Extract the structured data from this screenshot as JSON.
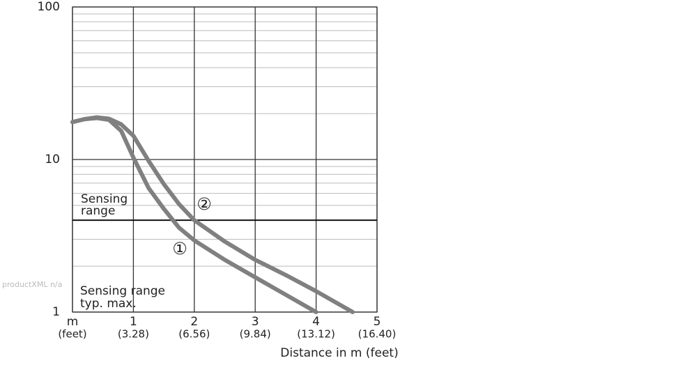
{
  "chart_data": {
    "type": "line",
    "log_y": true,
    "xlabel": "Distance in m (feet)",
    "ylabel_lines": [
      "Sensing range",
      "typ. max."
    ],
    "watermark": "productXML n/a",
    "xlim": [
      0,
      5
    ],
    "ylim": [
      1,
      100
    ],
    "xticks": [
      {
        "value": 0,
        "label": "m"
      },
      1,
      2,
      3,
      4,
      5
    ],
    "xtick_sublabels": [
      "(feet)",
      "(3.28)",
      "(6.56)",
      "(9.84)",
      "(13.12)",
      "(16.40)"
    ],
    "yticks": [
      1,
      10,
      100
    ],
    "minor_yticks": [
      2,
      3,
      4,
      5,
      6,
      7,
      8,
      9,
      20,
      30,
      40,
      50,
      60,
      70,
      80,
      90
    ],
    "grid": true,
    "threshold": {
      "value": 4,
      "label_lines": [
        "Sensing",
        "range"
      ]
    },
    "series": [
      {
        "name": "①",
        "color": "#808080",
        "x": [
          0,
          0.2,
          0.4,
          0.6,
          0.8,
          1,
          1.25,
          1.5,
          1.75,
          2,
          2.5,
          3,
          3.5,
          4
        ],
        "values": [
          17.6,
          18.4,
          18.7,
          18.2,
          15.4,
          10.3,
          6.5,
          4.75,
          3.57,
          2.95,
          2.2,
          1.69,
          1.3,
          1.0
        ]
      },
      {
        "name": "②",
        "color": "#808080",
        "x": [
          0,
          0.2,
          0.4,
          0.6,
          0.8,
          1,
          1.25,
          1.5,
          1.75,
          2,
          2.5,
          3,
          3.5,
          4,
          4.6
        ],
        "values": [
          17.6,
          18.4,
          18.9,
          18.5,
          17,
          14.3,
          9.8,
          6.9,
          5.1,
          4.0,
          2.9,
          2.2,
          1.75,
          1.37,
          1.0
        ]
      }
    ]
  }
}
